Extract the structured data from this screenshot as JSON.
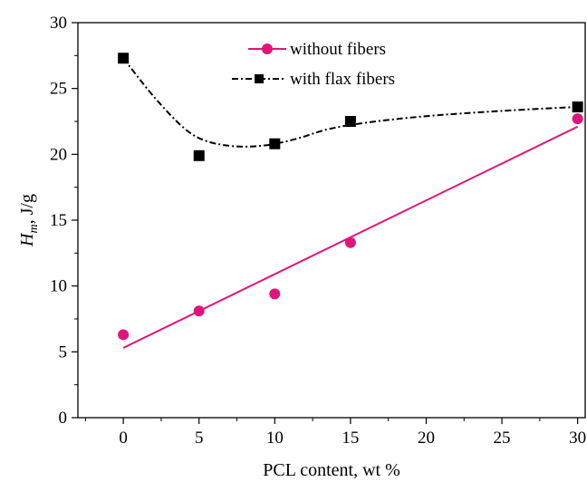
{
  "chart_data": {
    "type": "scatter",
    "xlabel": "PCL content, wt %",
    "ylabel": {
      "main": "H",
      "sub": "m",
      "rest": ", J/g"
    },
    "xlim": [
      -3,
      30.5
    ],
    "ylim": [
      0,
      30
    ],
    "xticks": [
      0,
      5,
      10,
      15,
      20,
      25,
      30
    ],
    "yticks": [
      0,
      5,
      10,
      15,
      20,
      25,
      30
    ],
    "grid": false,
    "legend_position": "top-center",
    "series": [
      {
        "name": "without fibers",
        "marker": "circle",
        "color": "#e0157a",
        "x": [
          0,
          5,
          10,
          15,
          30
        ],
        "y": [
          6.3,
          8.1,
          9.4,
          13.3,
          22.7
        ],
        "fit": {
          "kind": "linear",
          "x": [
            0,
            30
          ],
          "y": [
            5.3,
            22.1
          ],
          "style": "solid"
        }
      },
      {
        "name": "with flax fibers",
        "marker": "square",
        "color": "#000000",
        "x": [
          0,
          5,
          10,
          15,
          30
        ],
        "y": [
          27.3,
          19.9,
          20.8,
          22.5,
          23.6
        ],
        "fit": {
          "kind": "smooth",
          "x": [
            0,
            2,
            4,
            5.5,
            7.5,
            9.5,
            11.5,
            13.5,
            16,
            20,
            25,
            30
          ],
          "y": [
            27.3,
            24.4,
            22.0,
            21.0,
            20.6,
            20.7,
            21.2,
            21.9,
            22.4,
            22.9,
            23.3,
            23.6
          ],
          "style": "dash-dot"
        }
      }
    ]
  }
}
